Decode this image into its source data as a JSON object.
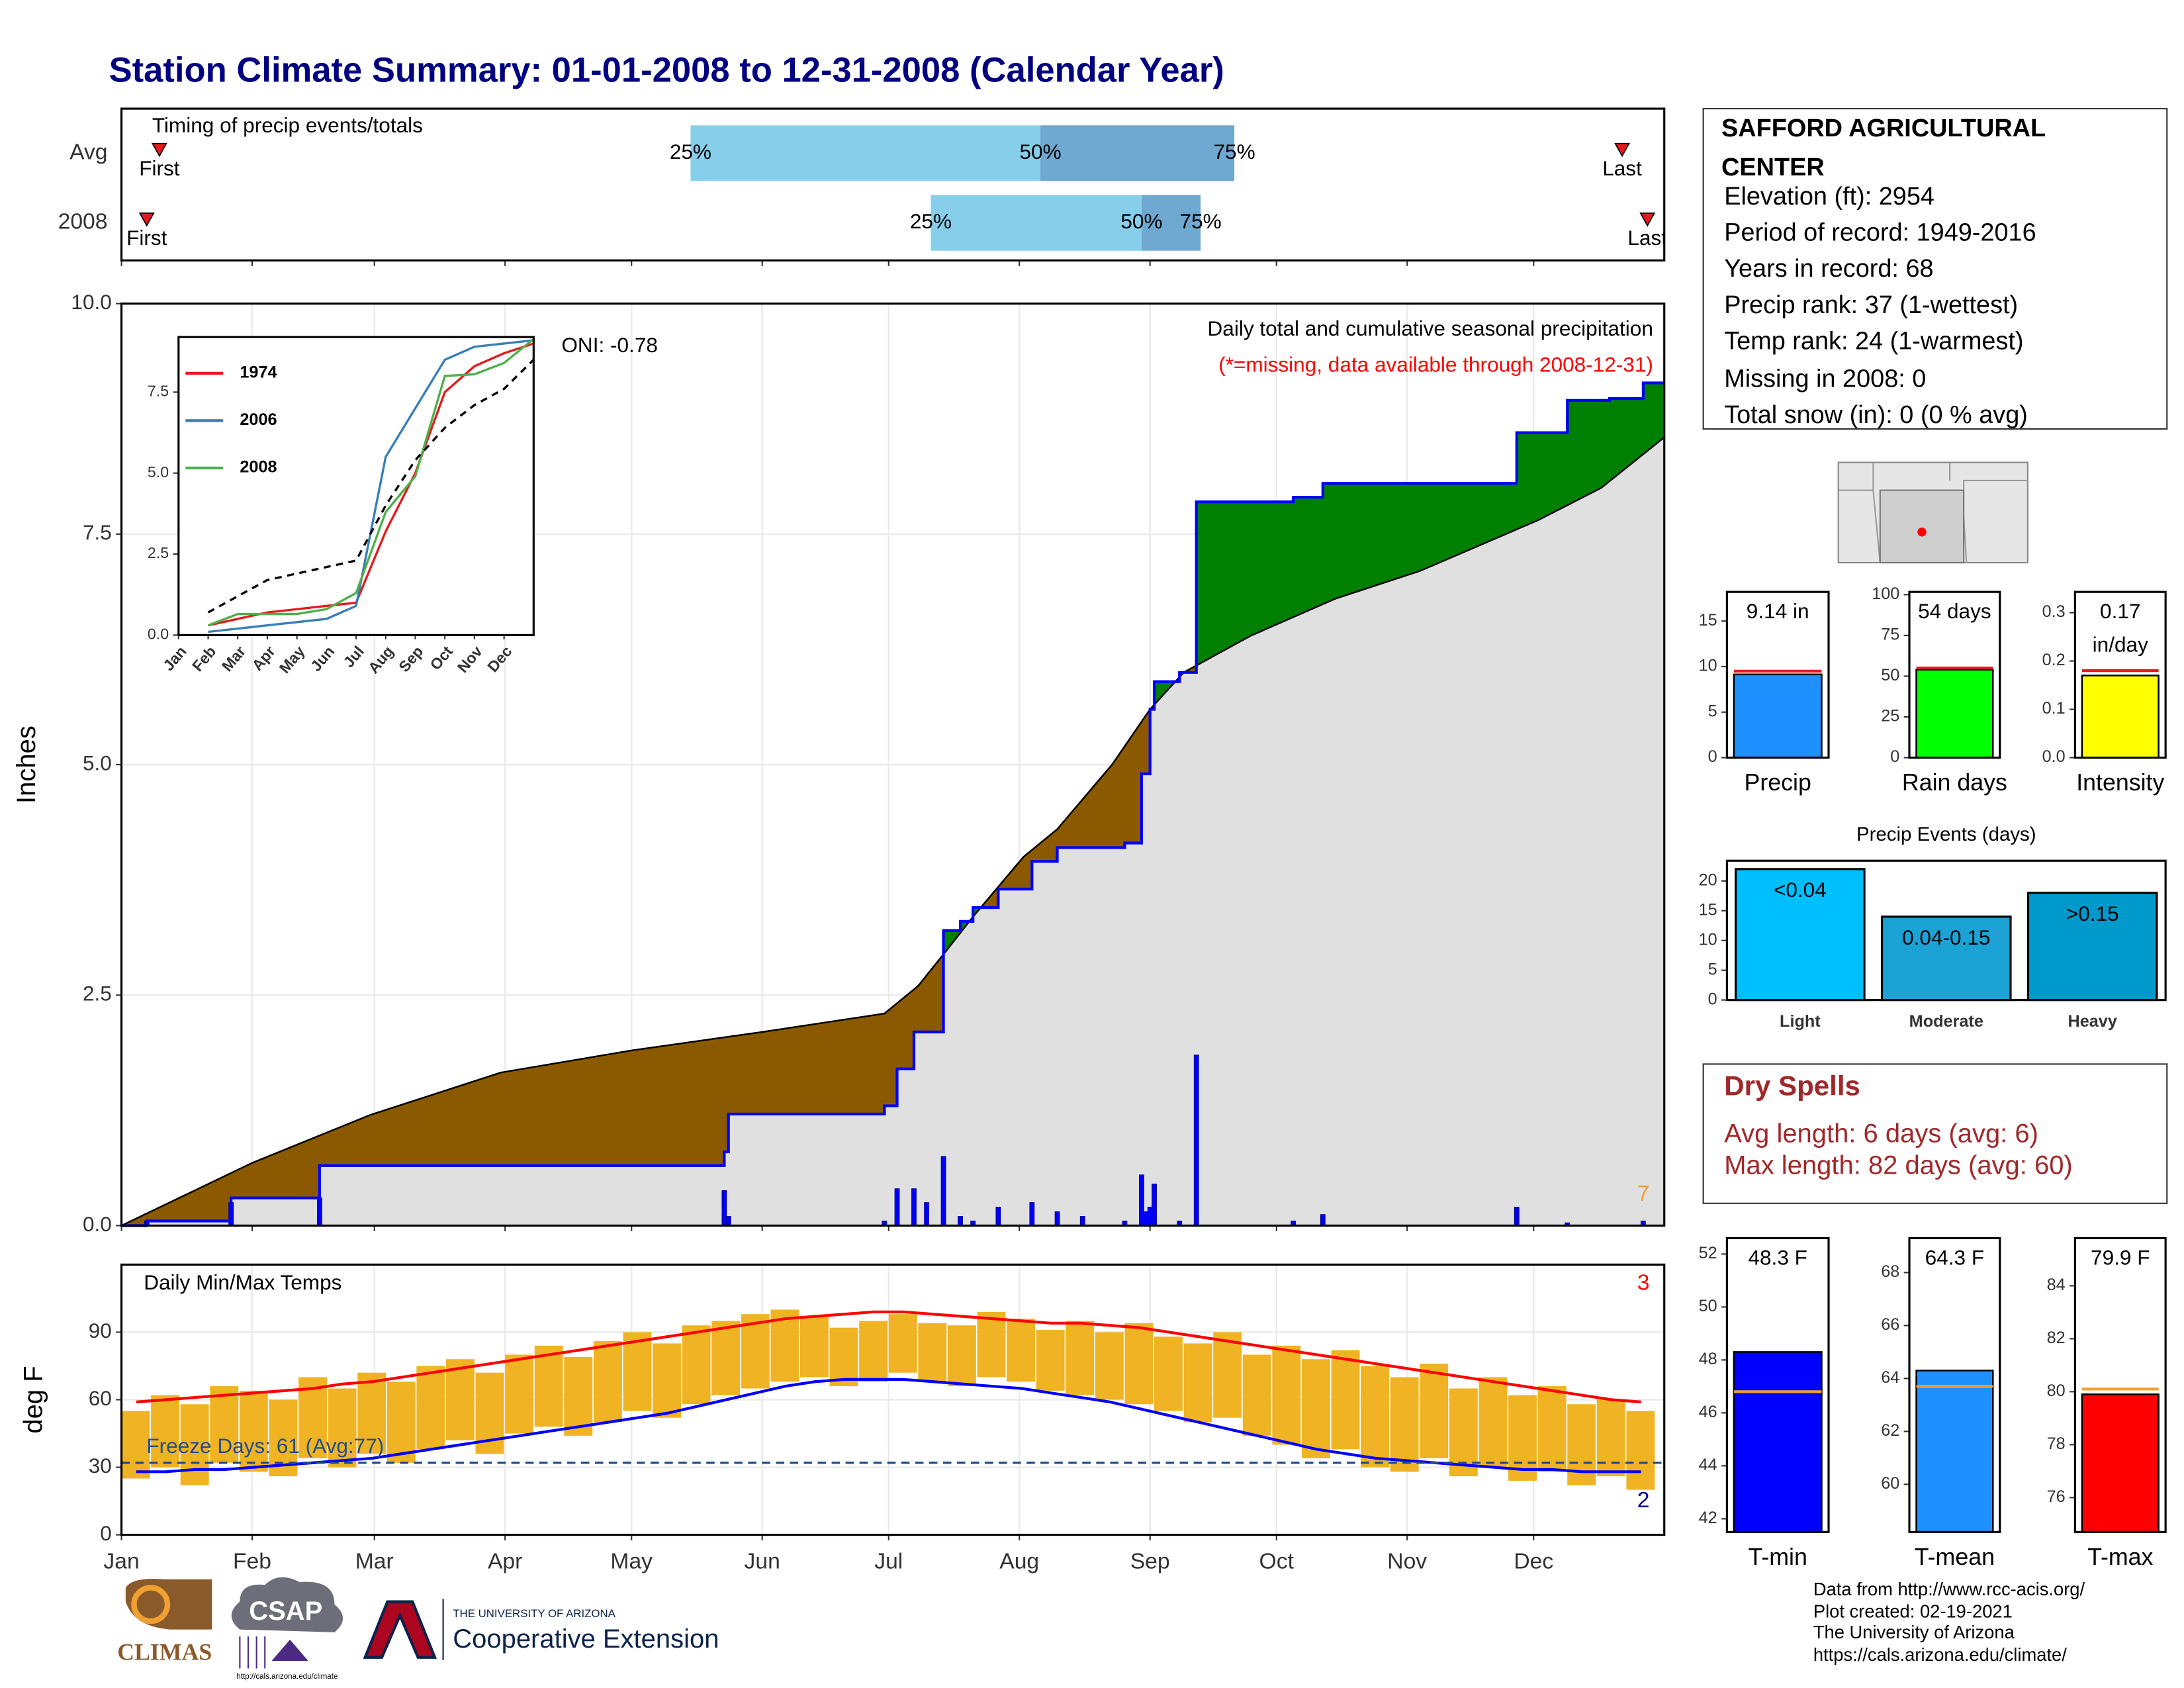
{
  "title": "Station Climate Summary: 01-01-2008 to 12-31-2008 (Calendar Year)",
  "station": {
    "name": "SAFFORD AGRICULTURAL CENTER",
    "lines": [
      "Elevation (ft): 2954",
      "Period of record: 1949-2016",
      "Years in record: 68",
      "Precip rank: 37 (1-wettest)",
      "Temp rank: 24 (1-warmest)",
      "Missing in 2008: 0",
      "Total snow (in): 0 (0 % avg)"
    ]
  },
  "dry_spells": {
    "title": "Dry Spells",
    "lines": [
      "Avg length: 6 days (avg: 6)",
      "Max length: 82 days (avg: 60)"
    ]
  },
  "footer": [
    "Data from http://www.rcc-acis.org/",
    "Plot created: 02-19-2021",
    "The University of Arizona",
    "https://cals.arizona.edu/climate/"
  ],
  "logos": {
    "climas": "CLIMAS",
    "csap": "CSAP",
    "csap_url": "http://cals.arizona.edu/climate",
    "university": "THE UNIVERSITY OF ARIZONA",
    "extension": "Cooperative Extension"
  },
  "chart_data": [
    {
      "type": "timing",
      "title": "Timing of precip events/totals",
      "xlim": [
        0,
        366
      ],
      "categories": [
        "Avg",
        "2008"
      ],
      "first": [
        9,
        6
      ],
      "q25": [
        135,
        192
      ],
      "q50": [
        218,
        242
      ],
      "q75": [
        264,
        256
      ],
      "last": [
        356,
        362
      ],
      "labels": {
        "first": "First",
        "q25": "25%",
        "q50": "50%",
        "q75": "75%",
        "last": "Last"
      },
      "colors": {
        "q25": "#87ceeb",
        "q50": "#6fa8d0",
        "marker": "#e41a1c"
      }
    },
    {
      "type": "area",
      "title": "Daily total and cumulative seasonal precipitation",
      "subtitle": "(*=missing, data available through 2008-12-31)",
      "oni": "ONI: -0.78",
      "note": "7",
      "ylabel": "Inches",
      "xlim": [
        0,
        366
      ],
      "ylim": [
        0,
        10
      ],
      "yticks": [
        {
          "value": 0,
          "label": "0.0"
        },
        2.5,
        {
          "value": 5,
          "label": "5.0"
        },
        7.5,
        {
          "value": 10,
          "label": "10.0"
        }
      ],
      "grid": true,
      "below_color": "#8b5a00",
      "above_color": "#008000",
      "series": [
        {
          "x": [
            0,
            31,
            59,
            90,
            121,
            152,
            181,
            189,
            196,
            202,
            214,
            222,
            235,
            244,
            252,
            268,
            288,
            308,
            336,
            351,
            366
          ],
          "values": [
            0,
            0.68,
            1.2,
            1.66,
            1.9,
            2.1,
            2.3,
            2.6,
            3.0,
            3.35,
            4.0,
            4.3,
            5.0,
            5.6,
            6.0,
            6.4,
            6.8,
            7.1,
            7.65,
            8.0,
            8.55
          ],
          "color": "#e0e0e0",
          "line_color": "#000000"
        },
        {
          "x": [
            0,
            6,
            26,
            47,
            143,
            144,
            181,
            184,
            188,
            195,
            199,
            202,
            208,
            216,
            222,
            238,
            242,
            244,
            245,
            251,
            255,
            278,
            285,
            331,
            343,
            353,
            361,
            366
          ],
          "values": [
            0,
            0.05,
            0.3,
            0.65,
            0.8,
            1.21,
            1.3,
            1.7,
            2.1,
            3.2,
            3.3,
            3.45,
            3.65,
            3.95,
            4.1,
            4.15,
            4.9,
            5.6,
            5.9,
            6.0,
            7.85,
            7.9,
            8.05,
            8.6,
            8.95,
            8.97,
            9.14,
            9.14
          ],
          "color": "#0000ff"
        }
      ],
      "daily": {
        "x": [
          6,
          26,
          47,
          143,
          144,
          181,
          184,
          188,
          191,
          195,
          199,
          202,
          208,
          216,
          222,
          228,
          238,
          242,
          243,
          244,
          245,
          251,
          255,
          278,
          285,
          331,
          343,
          361
        ],
        "values": [
          0.05,
          0.25,
          0.3,
          0.38,
          0.1,
          0.05,
          0.4,
          0.4,
          0.25,
          0.75,
          0.1,
          0.05,
          0.2,
          0.25,
          0.15,
          0.1,
          0.05,
          0.55,
          0.15,
          0.2,
          0.45,
          0.05,
          1.85,
          0.05,
          0.12,
          0.2,
          0.03,
          0.05
        ],
        "color": "#0000ff"
      }
    },
    {
      "type": "inset",
      "categories": [
        "Jan",
        "Feb",
        "Mar",
        "Apr",
        "May",
        "Jun",
        "Jul",
        "Aug",
        "Sep",
        "Oct",
        "Nov",
        "Dec"
      ],
      "ylim": [
        0,
        9.2
      ],
      "yticks": [
        {
          "value": 0,
          "label": "0.0"
        },
        2.5,
        {
          "value": 5,
          "label": "5.0"
        },
        7.5
      ],
      "series": [
        {
          "name": "1974",
          "color": "#e41a1c",
          "values": [
            0.3,
            0.5,
            0.7,
            0.8,
            0.9,
            1.0,
            3.2,
            5.0,
            7.5,
            8.3,
            8.7,
            9.0
          ]
        },
        {
          "name": "2006",
          "color": "#377eb8",
          "values": [
            0.1,
            0.2,
            0.3,
            0.4,
            0.5,
            0.9,
            5.5,
            7.0,
            8.5,
            8.9,
            9.0,
            9.1
          ]
        },
        {
          "name": "2008",
          "color": "#4daf4a",
          "values": [
            0.3,
            0.65,
            0.65,
            0.65,
            0.8,
            1.3,
            3.8,
            4.9,
            8.0,
            8.05,
            8.4,
            9.14
          ]
        },
        {
          "color": "#000000",
          "dash": true,
          "values": [
            0.7,
            1.2,
            1.7,
            1.9,
            2.1,
            2.3,
            4.0,
            5.4,
            6.4,
            7.1,
            7.6,
            8.5
          ]
        }
      ]
    },
    {
      "type": "temps",
      "title": "Daily Min/Max Temps",
      "freeze_label": "Freeze Days: 61 (Avg:77)",
      "high_note": "3",
      "low_note": "2",
      "ylabel": "deg F",
      "xlim": [
        0,
        366
      ],
      "ylim": [
        0,
        120
      ],
      "yticks": [
        0,
        30,
        60,
        90
      ],
      "grid": true,
      "xticks": [
        {
          "value": 0,
          "label": "Jan"
        },
        {
          "value": 31,
          "label": "Feb"
        },
        {
          "value": 60,
          "label": "Mar"
        },
        {
          "value": 91,
          "label": "Apr"
        },
        {
          "value": 121,
          "label": "May"
        },
        {
          "value": 152,
          "label": "Jun"
        },
        {
          "value": 182,
          "label": "Jul"
        },
        {
          "value": 213,
          "label": "Aug"
        },
        {
          "value": 244,
          "label": "Sep"
        },
        {
          "value": 274,
          "label": "Oct"
        },
        {
          "value": 305,
          "label": "Nov"
        },
        {
          "value": 335,
          "label": "Dec"
        }
      ],
      "x": [
        0,
        7,
        14,
        21,
        28,
        35,
        42,
        49,
        56,
        63,
        70,
        77,
        84,
        91,
        98,
        105,
        112,
        119,
        126,
        133,
        140,
        147,
        154,
        161,
        168,
        175,
        182,
        189,
        196,
        203,
        210,
        217,
        224,
        231,
        238,
        245,
        252,
        259,
        266,
        273,
        280,
        287,
        294,
        301,
        308,
        315,
        322,
        329,
        336,
        343,
        350,
        357
      ],
      "high": [
        55,
        62,
        58,
        66,
        64,
        60,
        70,
        65,
        72,
        68,
        75,
        78,
        72,
        80,
        84,
        79,
        86,
        90,
        85,
        93,
        95,
        98,
        100,
        97,
        92,
        95,
        98,
        94,
        93,
        99,
        96,
        91,
        95,
        90,
        94,
        88,
        85,
        90,
        80,
        84,
        78,
        82,
        75,
        70,
        76,
        65,
        70,
        62,
        66,
        58,
        60,
        55
      ],
      "low": [
        25,
        30,
        22,
        32,
        28,
        26,
        34,
        30,
        36,
        32,
        38,
        42,
        36,
        45,
        48,
        44,
        50,
        55,
        52,
        58,
        62,
        65,
        68,
        70,
        66,
        68,
        72,
        68,
        66,
        70,
        68,
        64,
        62,
        60,
        58,
        55,
        50,
        52,
        44,
        40,
        34,
        38,
        30,
        28,
        34,
        26,
        30,
        24,
        28,
        22,
        26,
        20
      ],
      "normal_high": [
        59,
        60,
        61,
        62,
        63,
        64,
        65,
        67,
        68,
        70,
        72,
        74,
        76,
        78,
        80,
        82,
        84,
        86,
        88,
        90,
        92,
        94,
        96,
        97,
        98,
        99,
        99,
        98,
        97,
        96,
        95,
        94,
        94,
        93,
        92,
        90,
        88,
        86,
        84,
        82,
        80,
        78,
        76,
        74,
        72,
        70,
        68,
        66,
        64,
        62,
        60,
        59
      ],
      "normal_low": [
        28,
        28,
        29,
        29,
        30,
        31,
        32,
        33,
        34,
        36,
        38,
        40,
        42,
        44,
        46,
        48,
        50,
        52,
        54,
        57,
        60,
        63,
        66,
        68,
        69,
        69,
        69,
        68,
        67,
        66,
        65,
        63,
        61,
        59,
        56,
        53,
        50,
        47,
        44,
        41,
        38,
        36,
        34,
        33,
        32,
        31,
        30,
        29,
        29,
        28,
        28,
        28
      ],
      "freeze": 32,
      "bar_color": "#f0b323",
      "normal_high_color": "#ff0000",
      "normal_low_color": "#0000ff",
      "freeze_color": "#1f4e8c"
    },
    {
      "type": "summary",
      "categories": [
        "Precip"
      ],
      "values": [
        9.14
      ],
      "value_labels": [
        "9.14 in"
      ],
      "average": 9.5,
      "color": "#1e90ff",
      "avg_color": "#e41a1c",
      "ylim": [
        0,
        18.2
      ],
      "yticks": [
        0,
        5,
        10,
        15
      ]
    },
    {
      "type": "summary",
      "categories": [
        "Rain days"
      ],
      "values": [
        54
      ],
      "value_labels": [
        "54 days"
      ],
      "average": 55,
      "color": "#00ff00",
      "avg_color": "#e41a1c",
      "ylim": [
        0,
        101.7
      ],
      "yticks": [
        0,
        25,
        50,
        75,
        100
      ]
    },
    {
      "type": "summary",
      "categories": [
        "Intensity"
      ],
      "values": [
        0.17
      ],
      "value_labels": [
        "0.17 in/day"
      ],
      "average": 0.18,
      "color": "#ffff00",
      "avg_color": "#e41a1c",
      "ylim": [
        0,
        0.343
      ],
      "yticks": [
        {
          "value": 0,
          "label": "0.0"
        },
        0.1,
        0.2,
        0.3
      ]
    },
    {
      "type": "events",
      "title": "Precip Events (days)",
      "categories": [
        "Light",
        "Moderate",
        "Heavy"
      ],
      "bin_labels": [
        "<0.04",
        "0.04-0.15",
        ">0.15"
      ],
      "values": [
        22,
        14,
        18
      ],
      "colors": [
        "#00bfff",
        "#1ca3d6",
        "#0099cc"
      ],
      "ylim": [
        0,
        23.4
      ],
      "yticks": [
        0,
        5,
        10,
        15,
        20
      ]
    },
    {
      "type": "summary",
      "categories": [
        "T-min"
      ],
      "values": [
        48.3
      ],
      "value_labels": [
        "48.3 F"
      ],
      "average": 46.8,
      "color": "#0000ff",
      "avg_color": "#f0a030",
      "ylim": [
        41.5,
        52.6
      ],
      "yticks": [
        42,
        44,
        46,
        48,
        50,
        52
      ]
    },
    {
      "type": "summary",
      "categories": [
        "T-mean"
      ],
      "values": [
        64.3
      ],
      "value_labels": [
        "64.3 F"
      ],
      "average": 63.7,
      "color": "#1e90ff",
      "avg_color": "#f0a030",
      "ylim": [
        58.2,
        69.3
      ],
      "yticks": [
        60,
        62,
        64,
        66,
        68
      ]
    },
    {
      "type": "summary",
      "categories": [
        "T-max"
      ],
      "values": [
        79.9
      ],
      "value_labels": [
        "79.9 F"
      ],
      "average": 80.1,
      "color": "#ff0000",
      "avg_color": "#f0a030",
      "ylim": [
        74.7,
        85.8
      ],
      "yticks": [
        76,
        78,
        80,
        82,
        84
      ]
    }
  ]
}
